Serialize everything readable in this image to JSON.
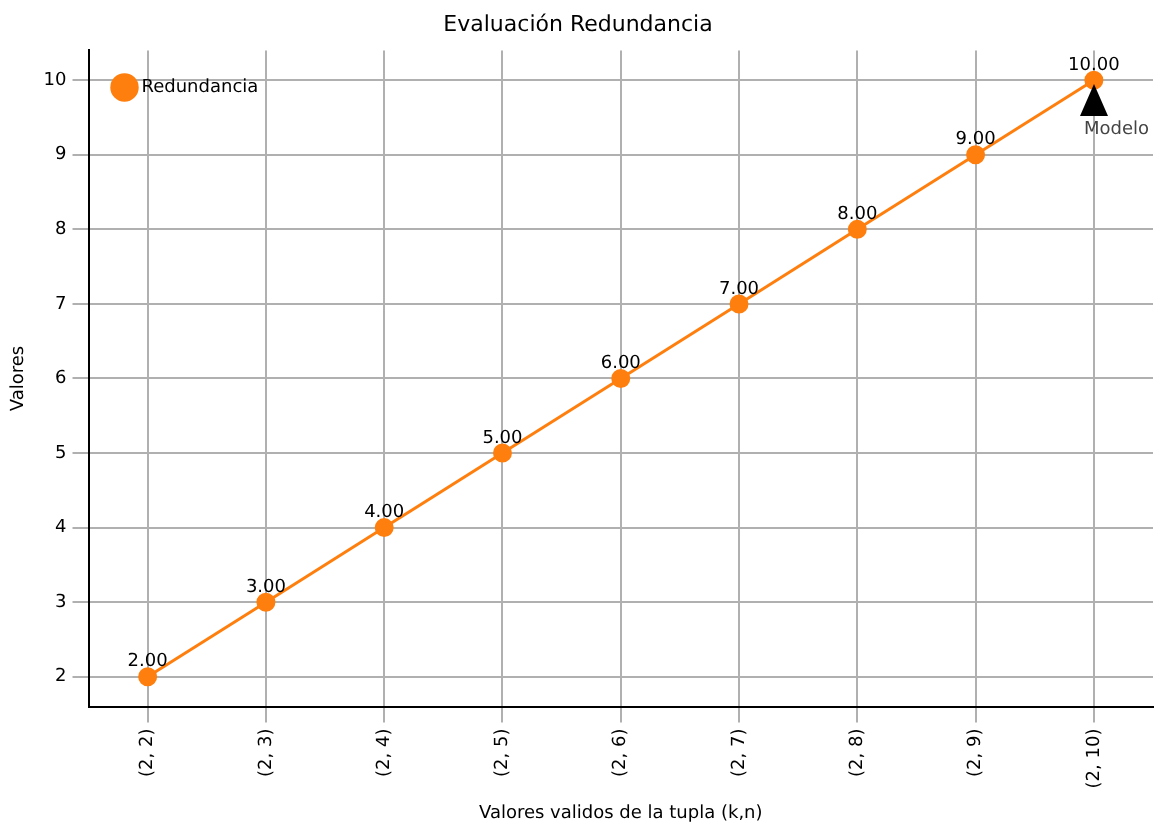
{
  "chart_data": {
    "type": "line",
    "title": "Evaluación Redundancia",
    "xlabel": "Valores validos de la tupla (k,n)",
    "ylabel": "Valores",
    "categories": [
      "(2, 2)",
      "(2, 3)",
      "(2, 4)",
      "(2, 5)",
      "(2, 6)",
      "(2, 7)",
      "(2, 8)",
      "(2, 9)",
      "(2, 10)"
    ],
    "series": [
      {
        "name": "Redundancia",
        "color": "#ff7f0e",
        "values": [
          2,
          3,
          4,
          5,
          6,
          7,
          8,
          9,
          10
        ],
        "value_labels": [
          "2.00",
          "3.00",
          "4.00",
          "5.00",
          "6.00",
          "7.00",
          "8.00",
          "9.00",
          "10.00"
        ]
      }
    ],
    "ylim": [
      1.6,
      10.4
    ],
    "yticks": [
      2,
      3,
      4,
      5,
      6,
      7,
      8,
      9,
      10
    ],
    "grid": true,
    "legend": "top left",
    "marker": "circle",
    "line_style": "solid",
    "annotations": [
      {
        "text": "Modelo",
        "x": "(2, 10)",
        "y": 10
      }
    ]
  }
}
